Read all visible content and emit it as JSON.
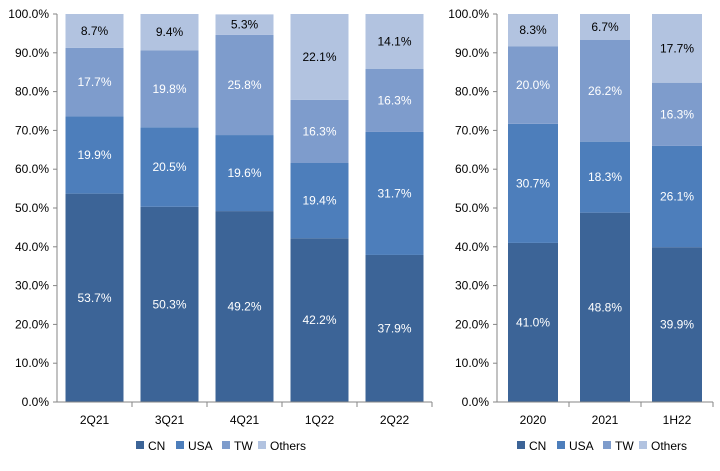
{
  "chart_data": [
    {
      "type": "bar",
      "stacked": true,
      "categories": [
        "2Q21",
        "3Q21",
        "4Q21",
        "1Q22",
        "2Q22"
      ],
      "series": [
        {
          "name": "CN",
          "color": "#3c6497",
          "values": [
            53.7,
            50.3,
            49.2,
            42.2,
            37.9
          ],
          "labels": [
            "53.7%",
            "50.3%",
            "49.2%",
            "42.2%",
            "37.9%"
          ]
        },
        {
          "name": "USA",
          "color": "#4d7ebb",
          "values": [
            19.9,
            20.5,
            19.6,
            19.4,
            31.7
          ],
          "labels": [
            "19.9%",
            "20.5%",
            "19.6%",
            "19.4%",
            "31.7%"
          ]
        },
        {
          "name": "TW",
          "color": "#7e9ccc",
          "values": [
            17.7,
            19.8,
            25.8,
            16.3,
            16.3
          ],
          "labels": [
            "17.7%",
            "19.8%",
            "25.8%",
            "16.3%",
            "16.3%"
          ]
        },
        {
          "name": "Others",
          "color": "#b2c3e0",
          "values": [
            8.7,
            9.4,
            5.3,
            22.1,
            14.1
          ],
          "labels": [
            "8.7%",
            "9.4%",
            "5.3%",
            "22.1%",
            "14.1%"
          ]
        }
      ],
      "ylim": [
        0,
        100
      ],
      "yticks": [
        "0.0%",
        "10.0%",
        "20.0%",
        "30.0%",
        "40.0%",
        "50.0%",
        "60.0%",
        "70.0%",
        "80.0%",
        "90.0%",
        "100.0%"
      ],
      "legend": "bottom",
      "grid": false
    },
    {
      "type": "bar",
      "stacked": true,
      "categories": [
        "2020",
        "2021",
        "1H22"
      ],
      "series": [
        {
          "name": "CN",
          "color": "#3c6497",
          "values": [
            41.0,
            48.8,
            39.9
          ],
          "labels": [
            "41.0%",
            "48.8%",
            "39.9%"
          ]
        },
        {
          "name": "USA",
          "color": "#4d7ebb",
          "values": [
            30.7,
            18.3,
            26.1
          ],
          "labels": [
            "30.7%",
            "18.3%",
            "26.1%"
          ]
        },
        {
          "name": "TW",
          "color": "#7e9ccc",
          "values": [
            20.0,
            26.2,
            16.3
          ],
          "labels": [
            "20.0%",
            "26.2%",
            "16.3%"
          ]
        },
        {
          "name": "Others",
          "color": "#b2c3e0",
          "values": [
            8.3,
            6.7,
            17.7
          ],
          "labels": [
            "8.3%",
            "6.7%",
            "17.7%"
          ]
        }
      ],
      "ylim": [
        0,
        100
      ],
      "yticks": [
        "0.0%",
        "10.0%",
        "20.0%",
        "30.0%",
        "40.0%",
        "50.0%",
        "60.0%",
        "70.0%",
        "80.0%",
        "90.0%",
        "100.0%"
      ],
      "legend": "bottom",
      "grid": false
    }
  ]
}
